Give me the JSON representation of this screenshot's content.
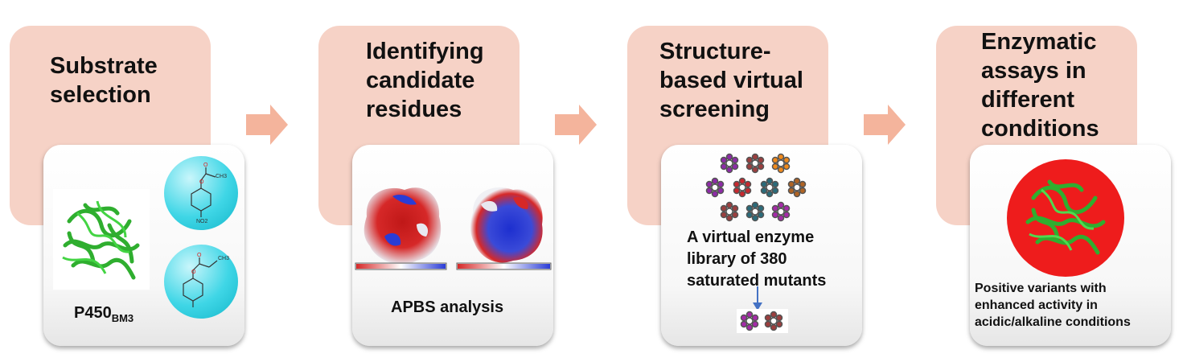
{
  "steps": [
    {
      "title": "Substrate\nselection"
    },
    {
      "title": "Identifying\ncandidate\nresidues"
    },
    {
      "title": "Structure-\nbased virtual\nscreening"
    },
    {
      "title": "Enzymatic\nassays in\ndifferent\nconditions"
    }
  ],
  "card1": {
    "enzyme_name": "P450",
    "enzyme_subscript": "BM3",
    "substituent_1": "CH3",
    "substituent_2": "CH3",
    "nitro": "NO2"
  },
  "card2": {
    "caption": "APBS analysis"
  },
  "card3": {
    "caption": "A virtual enzyme\nlibrary of 380\nsaturated mutants"
  },
  "card4": {
    "caption": "Positive variants with\nenhanced activity in\nacidic/alkaline conditions"
  },
  "colors": {
    "step_bg": "#f6d2c6",
    "arrow": "#f4b49c",
    "sphere": "#3fd6e6",
    "enzyme": "#3cc43c",
    "red_disc": "#ee1c1c"
  }
}
